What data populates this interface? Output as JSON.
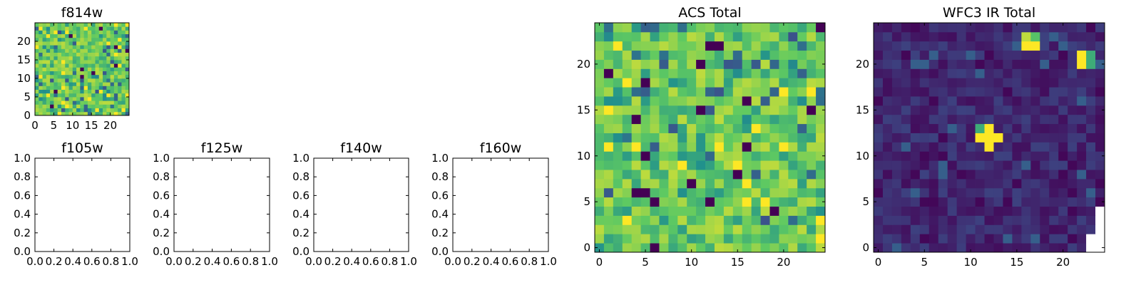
{
  "figure": {
    "colormap": [
      "#440154",
      "#3b528b",
      "#21918c",
      "#5ec962",
      "#fde725"
    ],
    "missing_color": "#ffffff"
  },
  "chart_data": [
    {
      "id": "f814w",
      "type": "heatmap",
      "title": "f814w",
      "grid_size": 25,
      "xlim": [
        0,
        25
      ],
      "ylim": [
        0,
        25
      ],
      "xticks": [
        0,
        5,
        10,
        15,
        20
      ],
      "yticks": [
        0,
        5,
        10,
        15,
        20
      ],
      "xticklabels": [
        "0",
        "5",
        "10",
        "15",
        "20"
      ],
      "yticklabels": [
        "0",
        "5",
        "10",
        "15",
        "20"
      ],
      "value_range": [
        0,
        1
      ],
      "pattern": "noise",
      "seed": 814
    },
    {
      "id": "f105w",
      "type": "empty",
      "title": "f105w",
      "xlim": [
        0,
        1
      ],
      "ylim": [
        0,
        1
      ],
      "xticks": [
        0.0,
        0.2,
        0.4,
        0.6,
        0.8,
        1.0
      ],
      "yticks": [
        0.0,
        0.2,
        0.4,
        0.6,
        0.8,
        1.0
      ],
      "xticklabels": [
        "0.0",
        "0.2",
        "0.4",
        "0.6",
        "0.8",
        "1.0"
      ],
      "yticklabels": [
        "0.0",
        "0.2",
        "0.4",
        "0.6",
        "0.8",
        "1.0"
      ]
    },
    {
      "id": "f125w",
      "type": "empty",
      "title": "f125w",
      "xlim": [
        0,
        1
      ],
      "ylim": [
        0,
        1
      ],
      "xticks": [
        0.0,
        0.2,
        0.4,
        0.6,
        0.8,
        1.0
      ],
      "yticks": [
        0.0,
        0.2,
        0.4,
        0.6,
        0.8,
        1.0
      ],
      "xticklabels": [
        "0.0",
        "0.2",
        "0.4",
        "0.6",
        "0.8",
        "1.0"
      ],
      "yticklabels": [
        "0.0",
        "0.2",
        "0.4",
        "0.6",
        "0.8",
        "1.0"
      ]
    },
    {
      "id": "f140w",
      "type": "empty",
      "title": "f140w",
      "xlim": [
        0,
        1
      ],
      "ylim": [
        0,
        1
      ],
      "xticks": [
        0.0,
        0.2,
        0.4,
        0.6,
        0.8,
        1.0
      ],
      "yticks": [
        0.0,
        0.2,
        0.4,
        0.6,
        0.8,
        1.0
      ],
      "xticklabels": [
        "0.0",
        "0.2",
        "0.4",
        "0.6",
        "0.8",
        "1.0"
      ],
      "yticklabels": [
        "0.0",
        "0.2",
        "0.4",
        "0.6",
        "0.8",
        "1.0"
      ]
    },
    {
      "id": "f160w",
      "type": "empty",
      "title": "f160w",
      "xlim": [
        0,
        1
      ],
      "ylim": [
        0,
        1
      ],
      "xticks": [
        0.0,
        0.2,
        0.4,
        0.6,
        0.8,
        1.0
      ],
      "yticks": [
        0.0,
        0.2,
        0.4,
        0.6,
        0.8,
        1.0
      ],
      "xticklabels": [
        "0.0",
        "0.2",
        "0.4",
        "0.6",
        "0.8",
        "1.0"
      ],
      "yticklabels": [
        "0.0",
        "0.2",
        "0.4",
        "0.6",
        "0.8",
        "1.0"
      ]
    },
    {
      "id": "acs",
      "type": "heatmap",
      "title": "ACS Total",
      "grid_size": 25,
      "xlim": [
        -0.5,
        24.5
      ],
      "ylim": [
        -0.5,
        24.5
      ],
      "xticks": [
        0,
        5,
        10,
        15,
        20
      ],
      "yticks": [
        0,
        5,
        10,
        15,
        20
      ],
      "xticklabels": [
        "0",
        "5",
        "10",
        "15",
        "20"
      ],
      "yticklabels": [
        "0",
        "5",
        "10",
        "15",
        "20"
      ],
      "value_range": [
        0,
        1
      ],
      "pattern": "noise",
      "seed": 2024
    },
    {
      "id": "wfc3",
      "type": "heatmap",
      "title": "WFC3 IR Total",
      "grid_size": 25,
      "xlim": [
        -0.5,
        24.5
      ],
      "ylim": [
        -0.5,
        24.5
      ],
      "xticks": [
        0,
        5,
        10,
        15,
        20
      ],
      "yticks": [
        0,
        5,
        10,
        15,
        20
      ],
      "xticklabels": [
        "0",
        "5",
        "10",
        "15",
        "20"
      ],
      "yticklabels": [
        "0",
        "5",
        "10",
        "15",
        "20"
      ],
      "value_range": [
        0,
        1
      ],
      "pattern": "sources",
      "seed": 3,
      "background_level": 0.12,
      "bright_pixels": [
        {
          "x": 12,
          "y": 12,
          "value": 1.0
        },
        {
          "x": 11,
          "y": 12,
          "value": 1.0
        },
        {
          "x": 13,
          "y": 12,
          "value": 1.0
        },
        {
          "x": 12,
          "y": 13,
          "value": 1.0
        },
        {
          "x": 12,
          "y": 11,
          "value": 1.0
        },
        {
          "x": 11,
          "y": 13,
          "value": 0.62
        },
        {
          "x": 16,
          "y": 22,
          "value": 1.0
        },
        {
          "x": 17,
          "y": 22,
          "value": 1.0
        },
        {
          "x": 16,
          "y": 23,
          "value": 0.9
        },
        {
          "x": 17,
          "y": 23,
          "value": 0.72
        },
        {
          "x": 22,
          "y": 20,
          "value": 1.0
        },
        {
          "x": 22,
          "y": 21,
          "value": 1.0
        },
        {
          "x": 23,
          "y": 20,
          "value": 0.62
        },
        {
          "x": 23,
          "y": 21,
          "value": 0.62
        }
      ],
      "missing_pixels": [
        {
          "x": 24,
          "y": 0
        },
        {
          "x": 23,
          "y": 0
        },
        {
          "x": 24,
          "y": 1
        },
        {
          "x": 23,
          "y": 1
        },
        {
          "x": 24,
          "y": 2
        },
        {
          "x": 24,
          "y": 3
        },
        {
          "x": 24,
          "y": 4
        }
      ]
    }
  ]
}
